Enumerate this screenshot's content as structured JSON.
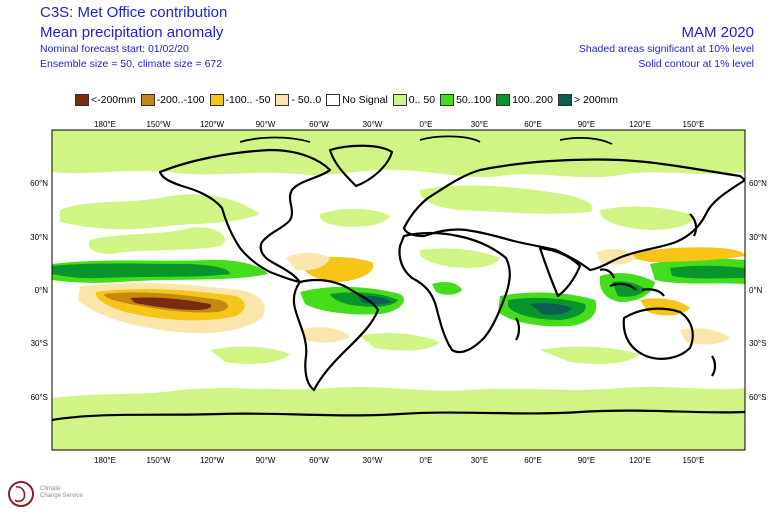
{
  "header": {
    "title": "C3S: Met Office contribution",
    "subtitle": "Mean precipitation anomaly",
    "forecast_start": "Nominal forecast start: 01/02/20",
    "ensemble": "Ensemble size = 50, climate size = 672",
    "season": "MAM 2020",
    "note_shaded": "Shaded areas significant at 10% level",
    "note_contour": "Solid contour at 1% level"
  },
  "legend": [
    {
      "label": "<-200mm",
      "color": "#7a2a10"
    },
    {
      "label": "-200..-100",
      "color": "#c48a10"
    },
    {
      "label": "-100.. -50",
      "color": "#f7c518"
    },
    {
      "label": "- 50..0",
      "color": "#fae6ac"
    },
    {
      "label": "No Signal",
      "color": "#ffffff"
    },
    {
      "label": "0.. 50",
      "color": "#d0f585"
    },
    {
      "label": "50..100",
      "color": "#43dd1a"
    },
    {
      "label": "100..200",
      "color": "#08962c"
    },
    {
      "label": "> 200mm",
      "color": "#0a5f52"
    }
  ],
  "axes": {
    "lon_labels": [
      "180°E",
      "150°W",
      "120°W",
      "90°W",
      "60°W",
      "30°W",
      "0°E",
      "30°E",
      "60°E",
      "90°E",
      "120°E",
      "150°E"
    ],
    "lat_labels": [
      "60°N",
      "30°N",
      "0°N",
      "30°S",
      "60°S"
    ]
  },
  "logo": {
    "line1": "Climate",
    "line2": "Change Service"
  }
}
